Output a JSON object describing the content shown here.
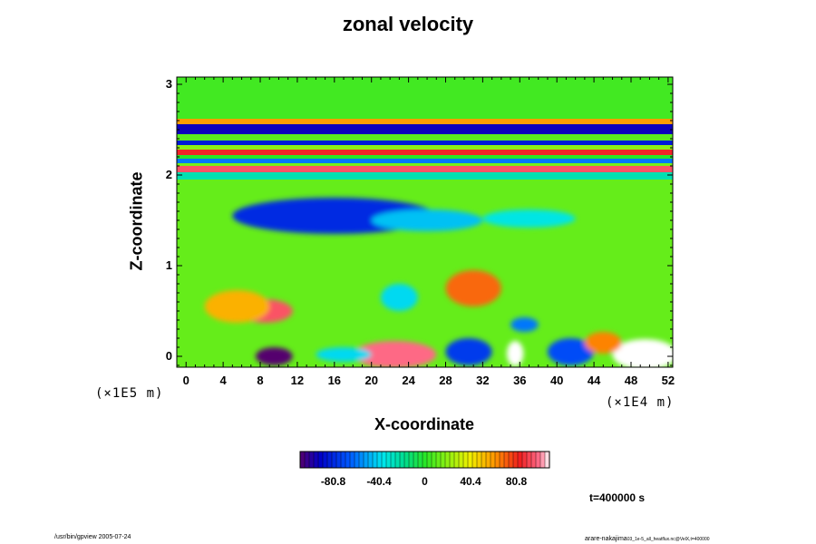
{
  "chart_data": {
    "type": "heatmap",
    "title": "zonal velocity",
    "xlabel": "X-coordinate",
    "ylabel": "Z-coordinate",
    "x_unit": "(×1E4 m)",
    "y_unit": "(×1E5 m)",
    "xlim": [
      -1,
      52.5
    ],
    "ylim": [
      -0.12,
      3.08
    ],
    "x_ticks": [
      "0",
      "4",
      "8",
      "12",
      "16",
      "20",
      "24",
      "28",
      "32",
      "36",
      "40",
      "44",
      "48",
      "52"
    ],
    "y_ticks": [
      "0",
      "1",
      "2",
      "3"
    ],
    "colorbar": {
      "range": [
        -110,
        110
      ],
      "tick_labels": [
        "-80.8",
        "-40.4",
        "0",
        "40.4",
        "80.8"
      ],
      "tick_values": [
        -80.8,
        -40.4,
        0,
        40.4,
        80.8
      ]
    },
    "timestamp": "t=400000 s",
    "bands": [
      {
        "z_from": 2.62,
        "z_to": 3.08,
        "value": 5
      },
      {
        "z_from": 2.56,
        "z_to": 2.62,
        "value": 60
      },
      {
        "z_from": 2.45,
        "z_to": 2.56,
        "value": -95
      },
      {
        "z_from": 2.38,
        "z_to": 2.45,
        "value": 10
      },
      {
        "z_from": 2.33,
        "z_to": 2.38,
        "value": -85
      },
      {
        "z_from": 2.28,
        "z_to": 2.33,
        "value": 20
      },
      {
        "z_from": 2.22,
        "z_to": 2.28,
        "value": 85
      },
      {
        "z_from": 2.18,
        "z_to": 2.22,
        "value": 0
      },
      {
        "z_from": 2.13,
        "z_to": 2.18,
        "value": -60
      },
      {
        "z_from": 2.1,
        "z_to": 2.13,
        "value": 15
      },
      {
        "z_from": 2.03,
        "z_to": 2.1,
        "value": 95
      },
      {
        "z_from": 1.95,
        "z_to": 2.03,
        "value": -25
      }
    ],
    "features": [
      {
        "x": 16,
        "z": 1.55,
        "rx": 11,
        "rz": 0.2,
        "value": -80
      },
      {
        "x": 26,
        "z": 1.5,
        "rx": 6,
        "rz": 0.12,
        "value": -45
      },
      {
        "x": 37,
        "z": 1.52,
        "rx": 5,
        "rz": 0.1,
        "value": -35
      },
      {
        "x": 8.5,
        "z": 0.5,
        "rx": 3,
        "rz": 0.13,
        "value": 95
      },
      {
        "x": 5.5,
        "z": 0.55,
        "rx": 3.5,
        "rz": 0.18,
        "value": 55
      },
      {
        "x": 31,
        "z": 0.75,
        "rx": 3,
        "rz": 0.2,
        "value": 70
      },
      {
        "x": 22.5,
        "z": 0.02,
        "rx": 4.5,
        "rz": 0.15,
        "value": 100
      },
      {
        "x": 49.5,
        "z": 0.02,
        "rx": 3.5,
        "rz": 0.17,
        "value": 120
      },
      {
        "x": 35.5,
        "z": 0.03,
        "rx": 0.9,
        "rz": 0.14,
        "value": 110
      },
      {
        "x": 9.5,
        "z": 0.0,
        "rx": 2,
        "rz": 0.1,
        "value": -115
      },
      {
        "x": 30.5,
        "z": 0.05,
        "rx": 2.5,
        "rz": 0.15,
        "value": -75
      },
      {
        "x": 41.5,
        "z": 0.05,
        "rx": 2.5,
        "rz": 0.15,
        "value": -70
      },
      {
        "x": 17,
        "z": 0.02,
        "rx": 3,
        "rz": 0.08,
        "value": -40
      },
      {
        "x": 45,
        "z": 0.15,
        "rx": 2,
        "rz": 0.12,
        "value": 65
      },
      {
        "x": 36.5,
        "z": 0.35,
        "rx": 1.5,
        "rz": 0.08,
        "value": -60
      },
      {
        "x": 23,
        "z": 0.65,
        "rx": 2,
        "rz": 0.15,
        "value": -40
      }
    ]
  },
  "footer": {
    "left": "/usr/bin/gpview 2005-07-24",
    "right_main": "arare-nakajima",
    "right_sub": "03_1e-5_all_heatflux.nc@VelX,t=400000"
  }
}
